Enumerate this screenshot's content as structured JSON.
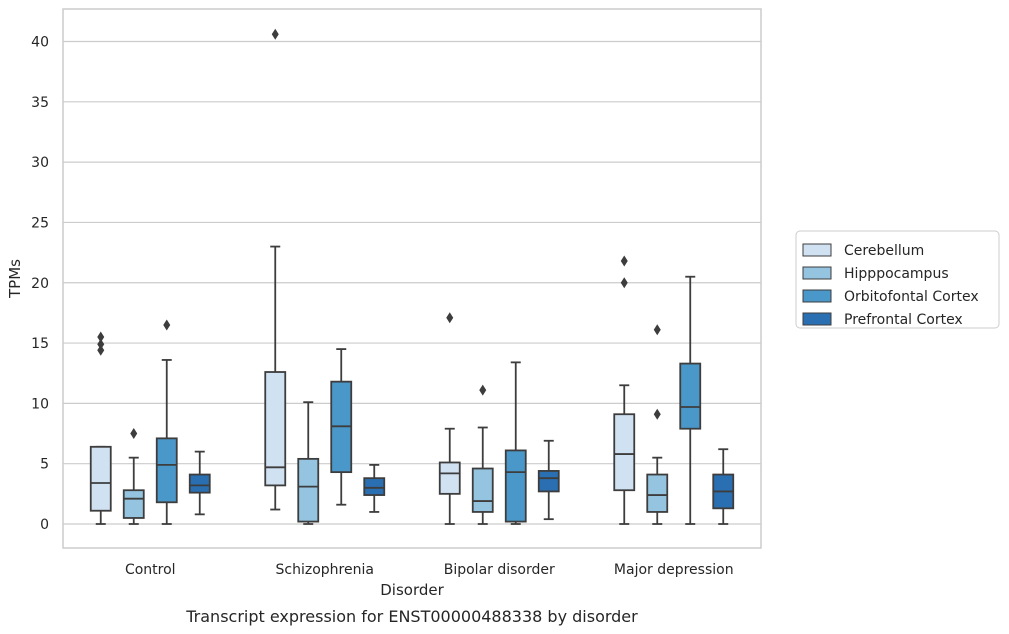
{
  "chart_data": {
    "type": "box",
    "caption": "Transcript expression for ENST00000488338 by disorder",
    "xlabel": "Disorder",
    "ylabel": "TPMs",
    "ylim": [
      -2,
      42.5
    ],
    "yticks": [
      0,
      5,
      10,
      15,
      20,
      25,
      30,
      35,
      40
    ],
    "grid": "horizontal",
    "legend_position": "right",
    "categories": [
      "Control",
      "Schizophrenia",
      "Bipolar disorder",
      "Major depression"
    ],
    "series": [
      {
        "name": "Cerebellum",
        "color": "#d0e1f2",
        "boxes": [
          {
            "whisker_low": 0,
            "q1": 1.1,
            "median": 3.4,
            "q3": 6.4,
            "whisker_high": 6.4,
            "outliers": [
              14.4,
              14.9,
              15.5
            ]
          },
          {
            "whisker_low": 1.2,
            "q1": 3.2,
            "median": 4.7,
            "q3": 12.6,
            "whisker_high": 23.0,
            "outliers": [
              40.6
            ]
          },
          {
            "whisker_low": 0,
            "q1": 2.5,
            "median": 4.2,
            "q3": 5.1,
            "whisker_high": 7.9,
            "outliers": [
              17.1
            ]
          },
          {
            "whisker_low": 0,
            "q1": 2.8,
            "median": 5.8,
            "q3": 9.1,
            "whisker_high": 11.5,
            "outliers": [
              20.0,
              21.8
            ]
          }
        ]
      },
      {
        "name": "Hipppocampus",
        "color": "#94c4df",
        "boxes": [
          {
            "whisker_low": 0,
            "q1": 0.5,
            "median": 2.1,
            "q3": 2.8,
            "whisker_high": 5.5,
            "outliers": [
              7.5
            ]
          },
          {
            "whisker_low": 0,
            "q1": 0.2,
            "median": 3.1,
            "q3": 5.4,
            "whisker_high": 10.1,
            "outliers": []
          },
          {
            "whisker_low": 0,
            "q1": 1.0,
            "median": 1.9,
            "q3": 4.6,
            "whisker_high": 8.0,
            "outliers": [
              11.1
            ]
          },
          {
            "whisker_low": 0,
            "q1": 1.0,
            "median": 2.4,
            "q3": 4.1,
            "whisker_high": 5.5,
            "outliers": [
              9.1,
              16.1
            ]
          }
        ]
      },
      {
        "name": "Orbitofontal Cortex",
        "color": "#4a98c9",
        "boxes": [
          {
            "whisker_low": 0,
            "q1": 1.8,
            "median": 4.9,
            "q3": 7.1,
            "whisker_high": 13.6,
            "outliers": [
              16.5
            ]
          },
          {
            "whisker_low": 1.6,
            "q1": 4.3,
            "median": 8.1,
            "q3": 11.8,
            "whisker_high": 14.5,
            "outliers": []
          },
          {
            "whisker_low": 0,
            "q1": 0.2,
            "median": 4.3,
            "q3": 6.1,
            "whisker_high": 13.4,
            "outliers": []
          },
          {
            "whisker_low": 0,
            "q1": 7.9,
            "median": 9.7,
            "q3": 13.3,
            "whisker_high": 20.5,
            "outliers": []
          }
        ]
      },
      {
        "name": "Prefrontal Cortex",
        "color": "#2a6fb2",
        "boxes": [
          {
            "whisker_low": 0.8,
            "q1": 2.6,
            "median": 3.2,
            "q3": 4.1,
            "whisker_high": 6.0,
            "outliers": []
          },
          {
            "whisker_low": 1.0,
            "q1": 2.4,
            "median": 3.0,
            "q3": 3.8,
            "whisker_high": 4.9,
            "outliers": []
          },
          {
            "whisker_low": 0.4,
            "q1": 2.7,
            "median": 3.8,
            "q3": 4.4,
            "whisker_high": 6.9,
            "outliers": []
          },
          {
            "whisker_low": 0,
            "q1": 1.3,
            "median": 2.7,
            "q3": 4.1,
            "whisker_high": 6.2,
            "outliers": []
          }
        ]
      }
    ]
  }
}
